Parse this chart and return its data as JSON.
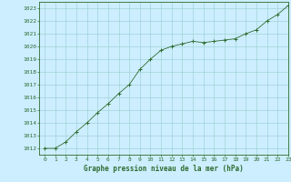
{
  "x": [
    0,
    1,
    2,
    3,
    4,
    5,
    6,
    7,
    8,
    9,
    10,
    11,
    12,
    13,
    14,
    15,
    16,
    17,
    18,
    19,
    20,
    21,
    22,
    23
  ],
  "y": [
    1012.0,
    1012.0,
    1012.5,
    1013.3,
    1014.0,
    1014.8,
    1015.5,
    1016.3,
    1017.0,
    1018.2,
    1019.0,
    1019.7,
    1020.0,
    1020.2,
    1020.4,
    1020.3,
    1020.4,
    1020.5,
    1020.6,
    1021.0,
    1021.3,
    1022.0,
    1022.5,
    1023.2
  ],
  "line_color": "#2d6a2d",
  "marker": "+",
  "marker_size": 3.5,
  "marker_color": "#2d6a2d",
  "bg_color": "#cceeff",
  "grid_color": "#99cccc",
  "xlabel": "Graphe pression niveau de la mer (hPa)",
  "ylim_min": 1011.5,
  "ylim_max": 1023.5,
  "xlim_min": -0.5,
  "xlim_max": 23,
  "yticks": [
    1012,
    1013,
    1014,
    1015,
    1016,
    1017,
    1018,
    1019,
    1020,
    1021,
    1022,
    1023
  ],
  "xticks": [
    0,
    1,
    2,
    3,
    4,
    5,
    6,
    7,
    8,
    9,
    10,
    11,
    12,
    13,
    14,
    15,
    16,
    17,
    18,
    19,
    20,
    21,
    22,
    23
  ],
  "tick_fontsize": 4.5,
  "label_fontsize": 5.5,
  "tick_color": "#2d6a2d",
  "axis_color": "#2d6a2d",
  "linewidth": 0.6,
  "markeredgewidth": 0.7
}
